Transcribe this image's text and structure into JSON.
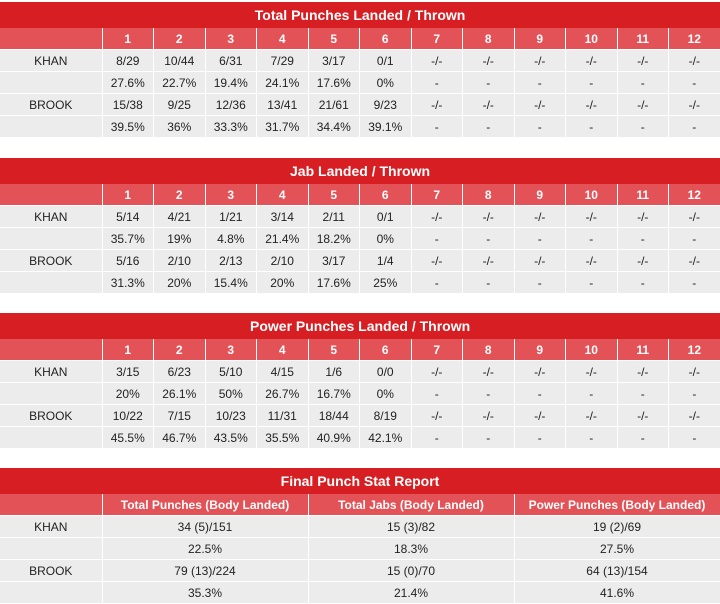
{
  "rounds": [
    "1",
    "2",
    "3",
    "4",
    "5",
    "6",
    "7",
    "8",
    "9",
    "10",
    "11",
    "12"
  ],
  "total": {
    "title": "Total Punches Landed / Thrown",
    "fighters": [
      {
        "name": "KHAN",
        "landed": [
          "8/29",
          "10/44",
          "6/31",
          "7/29",
          "3/17",
          "0/1",
          "-/-",
          "-/-",
          "-/-",
          "-/-",
          "-/-",
          "-/-"
        ],
        "pct": [
          "27.6%",
          "22.7%",
          "19.4%",
          "24.1%",
          "17.6%",
          "0%",
          "-",
          "-",
          "-",
          "-",
          "-",
          "-"
        ]
      },
      {
        "name": "BROOK",
        "landed": [
          "15/38",
          "9/25",
          "12/36",
          "13/41",
          "21/61",
          "9/23",
          "-/-",
          "-/-",
          "-/-",
          "-/-",
          "-/-",
          "-/-"
        ],
        "pct": [
          "39.5%",
          "36%",
          "33.3%",
          "31.7%",
          "34.4%",
          "39.1%",
          "-",
          "-",
          "-",
          "-",
          "-",
          "-"
        ]
      }
    ]
  },
  "jab": {
    "title": "Jab Landed / Thrown",
    "fighters": [
      {
        "name": "KHAN",
        "landed": [
          "5/14",
          "4/21",
          "1/21",
          "3/14",
          "2/11",
          "0/1",
          "-/-",
          "-/-",
          "-/-",
          "-/-",
          "-/-",
          "-/-"
        ],
        "pct": [
          "35.7%",
          "19%",
          "4.8%",
          "21.4%",
          "18.2%",
          "0%",
          "-",
          "-",
          "-",
          "-",
          "-",
          "-"
        ]
      },
      {
        "name": "BROOK",
        "landed": [
          "5/16",
          "2/10",
          "2/13",
          "2/10",
          "3/17",
          "1/4",
          "-/-",
          "-/-",
          "-/-",
          "-/-",
          "-/-",
          "-/-"
        ],
        "pct": [
          "31.3%",
          "20%",
          "15.4%",
          "20%",
          "17.6%",
          "25%",
          "-",
          "-",
          "-",
          "-",
          "-",
          "-"
        ]
      }
    ]
  },
  "power": {
    "title": "Power Punches Landed / Thrown",
    "fighters": [
      {
        "name": "KHAN",
        "landed": [
          "3/15",
          "6/23",
          "5/10",
          "4/15",
          "1/6",
          "0/0",
          "-/-",
          "-/-",
          "-/-",
          "-/-",
          "-/-",
          "-/-"
        ],
        "pct": [
          "20%",
          "26.1%",
          "50%",
          "26.7%",
          "16.7%",
          "0%",
          "-",
          "-",
          "-",
          "-",
          "-",
          "-"
        ]
      },
      {
        "name": "BROOK",
        "landed": [
          "10/22",
          "7/15",
          "10/23",
          "11/31",
          "18/44",
          "8/19",
          "-/-",
          "-/-",
          "-/-",
          "-/-",
          "-/-",
          "-/-"
        ],
        "pct": [
          "45.5%",
          "46.7%",
          "43.5%",
          "35.5%",
          "40.9%",
          "42.1%",
          "-",
          "-",
          "-",
          "-",
          "-",
          "-"
        ]
      }
    ]
  },
  "final": {
    "title": "Final Punch Stat Report",
    "headers": [
      "Total Punches (Body Landed)",
      "Total Jabs (Body Landed)",
      "Power Punches (Body Landed)"
    ],
    "fighters": [
      {
        "name": "KHAN",
        "values": [
          "34 (5)/151",
          "15 (3)/82",
          "19 (2)/69"
        ],
        "pct": [
          "22.5%",
          "18.3%",
          "27.5%"
        ]
      },
      {
        "name": "BROOK",
        "values": [
          "79 (13)/224",
          "15 (0)/70",
          "64 (13)/154"
        ],
        "pct": [
          "35.3%",
          "21.4%",
          "41.6%"
        ]
      }
    ]
  }
}
